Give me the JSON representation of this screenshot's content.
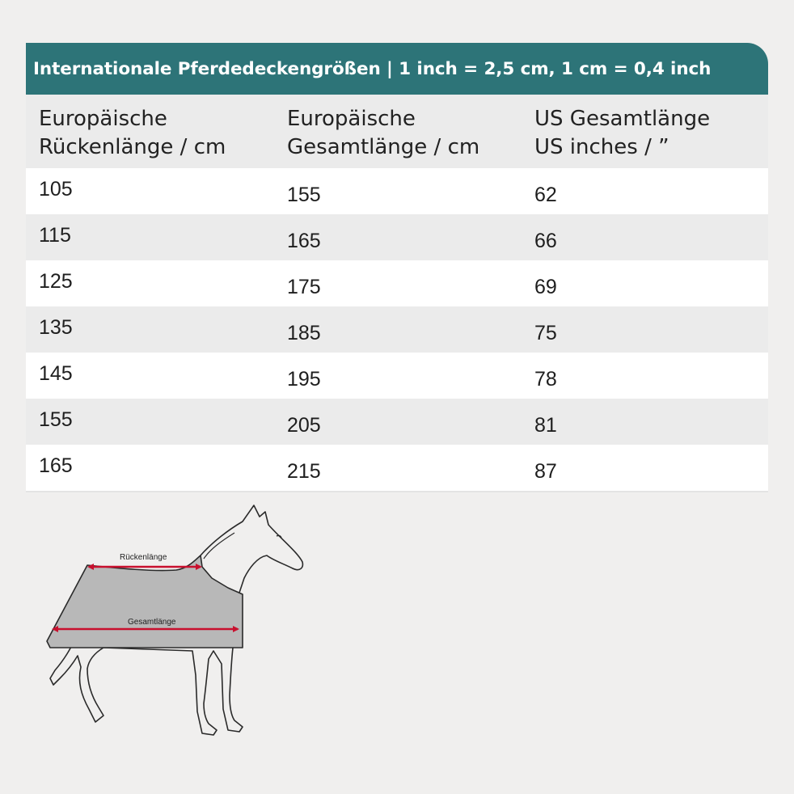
{
  "title": "Internationale Pferdedeckengrößen | 1 inch = 2,5 cm, 1 cm = 0,4 inch",
  "headers": [
    {
      "line1": "Europäische",
      "line2": "Rückenlänge / cm"
    },
    {
      "line1": "Europäische",
      "line2": "Gesamtlänge / cm"
    },
    {
      "line1": "US Gesamtlänge",
      "line2": "US inches / ”"
    }
  ],
  "rows": [
    {
      "back": "105",
      "total": "155",
      "us": "62"
    },
    {
      "back": "115",
      "total": "165",
      "us": "66"
    },
    {
      "back": "125",
      "total": "175",
      "us": "69"
    },
    {
      "back": "135",
      "total": "185",
      "us": "75"
    },
    {
      "back": "145",
      "total": "195",
      "us": "78"
    },
    {
      "back": "155",
      "total": "205",
      "us": "81"
    },
    {
      "back": "165",
      "total": "215",
      "us": "87"
    }
  ],
  "diagram": {
    "back_label": "Rückenlänge",
    "total_label": "Gesamtlänge",
    "arrow_color": "#c8102e",
    "blanket_color": "#b8b8b8"
  },
  "colors": {
    "header_teal": "#2d7478",
    "row_grey": "#ebebeb",
    "row_white": "#ffffff",
    "background": "#f0efee"
  }
}
